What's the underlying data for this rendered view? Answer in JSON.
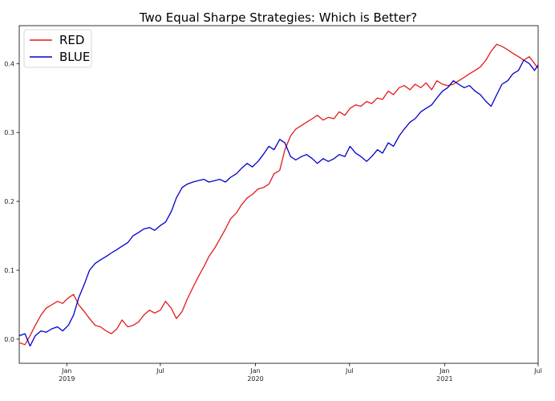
{
  "chart_data": {
    "type": "line",
    "title": "Two Equal Sharpe Strategies: Which is Better?",
    "xlabel": "",
    "ylabel": "",
    "x_range": [
      "2018-10-01",
      "2021-07-01"
    ],
    "ylim": [
      -0.035,
      0.455
    ],
    "y_ticks": [
      0.0,
      0.1,
      0.2,
      0.3,
      0.4
    ],
    "y_tick_labels": [
      "0.0",
      "0.1",
      "0.2",
      "0.3",
      "0.4"
    ],
    "x_ticks": [
      {
        "date": "2019-01-01",
        "label": "Jan",
        "sublabel": "2019"
      },
      {
        "date": "2019-07-01",
        "label": "Jul",
        "sublabel": ""
      },
      {
        "date": "2020-01-01",
        "label": "Jan",
        "sublabel": "2020"
      },
      {
        "date": "2020-07-01",
        "label": "Jul",
        "sublabel": ""
      },
      {
        "date": "2021-01-01",
        "label": "Jan",
        "sublabel": "2021"
      },
      {
        "date": "2021-07-01",
        "label": "Jul",
        "sublabel": ""
      }
    ],
    "grid": false,
    "legend_position": "top-left",
    "series": [
      {
        "name": "RED",
        "color": "#e41a1c",
        "points": [
          [
            "2018-10-01",
            -0.005
          ],
          [
            "2018-10-12",
            -0.008
          ],
          [
            "2018-10-22",
            0.005
          ],
          [
            "2018-11-01",
            0.02
          ],
          [
            "2018-11-12",
            0.035
          ],
          [
            "2018-11-22",
            0.045
          ],
          [
            "2018-12-03",
            0.05
          ],
          [
            "2018-12-14",
            0.055
          ],
          [
            "2018-12-24",
            0.052
          ],
          [
            "2019-01-04",
            0.06
          ],
          [
            "2019-01-14",
            0.065
          ],
          [
            "2019-01-24",
            0.05
          ],
          [
            "2019-02-04",
            0.04
          ],
          [
            "2019-02-14",
            0.03
          ],
          [
            "2019-02-25",
            0.02
          ],
          [
            "2019-03-07",
            0.018
          ],
          [
            "2019-03-18",
            0.012
          ],
          [
            "2019-03-28",
            0.008
          ],
          [
            "2019-04-08",
            0.015
          ],
          [
            "2019-04-18",
            0.028
          ],
          [
            "2019-04-29",
            0.018
          ],
          [
            "2019-05-09",
            0.02
          ],
          [
            "2019-05-20",
            0.025
          ],
          [
            "2019-05-30",
            0.035
          ],
          [
            "2019-06-10",
            0.042
          ],
          [
            "2019-06-20",
            0.038
          ],
          [
            "2019-07-01",
            0.042
          ],
          [
            "2019-07-11",
            0.055
          ],
          [
            "2019-07-22",
            0.045
          ],
          [
            "2019-08-01",
            0.03
          ],
          [
            "2019-08-12",
            0.04
          ],
          [
            "2019-08-22",
            0.058
          ],
          [
            "2019-09-02",
            0.075
          ],
          [
            "2019-09-12",
            0.09
          ],
          [
            "2019-09-23",
            0.105
          ],
          [
            "2019-10-03",
            0.12
          ],
          [
            "2019-10-14",
            0.132
          ],
          [
            "2019-10-24",
            0.145
          ],
          [
            "2019-11-04",
            0.16
          ],
          [
            "2019-11-14",
            0.175
          ],
          [
            "2019-11-25",
            0.183
          ],
          [
            "2019-12-05",
            0.195
          ],
          [
            "2019-12-16",
            0.205
          ],
          [
            "2019-12-26",
            0.21
          ],
          [
            "2020-01-06",
            0.218
          ],
          [
            "2020-01-16",
            0.22
          ],
          [
            "2020-01-27",
            0.225
          ],
          [
            "2020-02-06",
            0.24
          ],
          [
            "2020-02-17",
            0.245
          ],
          [
            "2020-02-27",
            0.275
          ],
          [
            "2020-03-09",
            0.295
          ],
          [
            "2020-03-19",
            0.305
          ],
          [
            "2020-03-30",
            0.31
          ],
          [
            "2020-04-09",
            0.315
          ],
          [
            "2020-04-20",
            0.32
          ],
          [
            "2020-04-30",
            0.325
          ],
          [
            "2020-05-11",
            0.318
          ],
          [
            "2020-05-21",
            0.322
          ],
          [
            "2020-06-01",
            0.32
          ],
          [
            "2020-06-11",
            0.33
          ],
          [
            "2020-06-22",
            0.325
          ],
          [
            "2020-07-02",
            0.335
          ],
          [
            "2020-07-13",
            0.34
          ],
          [
            "2020-07-23",
            0.338
          ],
          [
            "2020-08-03",
            0.345
          ],
          [
            "2020-08-13",
            0.342
          ],
          [
            "2020-08-24",
            0.35
          ],
          [
            "2020-09-03",
            0.348
          ],
          [
            "2020-09-14",
            0.36
          ],
          [
            "2020-09-24",
            0.355
          ],
          [
            "2020-10-05",
            0.365
          ],
          [
            "2020-10-15",
            0.368
          ],
          [
            "2020-10-26",
            0.362
          ],
          [
            "2020-11-05",
            0.37
          ],
          [
            "2020-11-16",
            0.365
          ],
          [
            "2020-11-26",
            0.372
          ],
          [
            "2020-12-07",
            0.362
          ],
          [
            "2020-12-17",
            0.375
          ],
          [
            "2020-12-28",
            0.37
          ],
          [
            "2021-01-07",
            0.368
          ],
          [
            "2021-01-18",
            0.37
          ],
          [
            "2021-01-28",
            0.375
          ],
          [
            "2021-02-08",
            0.38
          ],
          [
            "2021-02-18",
            0.385
          ],
          [
            "2021-03-01",
            0.39
          ],
          [
            "2021-03-11",
            0.395
          ],
          [
            "2021-03-22",
            0.405
          ],
          [
            "2021-04-01",
            0.418
          ],
          [
            "2021-04-12",
            0.428
          ],
          [
            "2021-04-22",
            0.425
          ],
          [
            "2021-05-03",
            0.42
          ],
          [
            "2021-05-13",
            0.415
          ],
          [
            "2021-05-24",
            0.41
          ],
          [
            "2021-06-03",
            0.405
          ],
          [
            "2021-06-14",
            0.41
          ],
          [
            "2021-06-24",
            0.4
          ],
          [
            "2021-07-01",
            0.393
          ]
        ]
      },
      {
        "name": "BLUE",
        "color": "#0000cc",
        "points": [
          [
            "2018-10-01",
            0.005
          ],
          [
            "2018-10-12",
            0.008
          ],
          [
            "2018-10-22",
            -0.01
          ],
          [
            "2018-11-01",
            0.005
          ],
          [
            "2018-11-12",
            0.012
          ],
          [
            "2018-11-22",
            0.01
          ],
          [
            "2018-12-03",
            0.015
          ],
          [
            "2018-12-14",
            0.018
          ],
          [
            "2018-12-24",
            0.012
          ],
          [
            "2019-01-04",
            0.02
          ],
          [
            "2019-01-14",
            0.035
          ],
          [
            "2019-01-24",
            0.06
          ],
          [
            "2019-02-04",
            0.08
          ],
          [
            "2019-02-14",
            0.1
          ],
          [
            "2019-02-25",
            0.11
          ],
          [
            "2019-03-07",
            0.115
          ],
          [
            "2019-03-18",
            0.12
          ],
          [
            "2019-03-28",
            0.125
          ],
          [
            "2019-04-08",
            0.13
          ],
          [
            "2019-04-18",
            0.135
          ],
          [
            "2019-04-29",
            0.14
          ],
          [
            "2019-05-09",
            0.15
          ],
          [
            "2019-05-20",
            0.155
          ],
          [
            "2019-05-30",
            0.16
          ],
          [
            "2019-06-10",
            0.162
          ],
          [
            "2019-06-20",
            0.158
          ],
          [
            "2019-07-01",
            0.165
          ],
          [
            "2019-07-11",
            0.17
          ],
          [
            "2019-07-22",
            0.185
          ],
          [
            "2019-08-01",
            0.205
          ],
          [
            "2019-08-12",
            0.22
          ],
          [
            "2019-08-22",
            0.225
          ],
          [
            "2019-09-02",
            0.228
          ],
          [
            "2019-09-12",
            0.23
          ],
          [
            "2019-09-23",
            0.232
          ],
          [
            "2019-10-03",
            0.228
          ],
          [
            "2019-10-14",
            0.23
          ],
          [
            "2019-10-24",
            0.232
          ],
          [
            "2019-11-04",
            0.228
          ],
          [
            "2019-11-14",
            0.235
          ],
          [
            "2019-11-25",
            0.24
          ],
          [
            "2019-12-05",
            0.248
          ],
          [
            "2019-12-16",
            0.255
          ],
          [
            "2019-12-26",
            0.25
          ],
          [
            "2020-01-06",
            0.258
          ],
          [
            "2020-01-16",
            0.268
          ],
          [
            "2020-01-27",
            0.28
          ],
          [
            "2020-02-06",
            0.275
          ],
          [
            "2020-02-17",
            0.29
          ],
          [
            "2020-02-27",
            0.285
          ],
          [
            "2020-03-09",
            0.265
          ],
          [
            "2020-03-19",
            0.26
          ],
          [
            "2020-03-30",
            0.265
          ],
          [
            "2020-04-09",
            0.268
          ],
          [
            "2020-04-20",
            0.262
          ],
          [
            "2020-04-30",
            0.255
          ],
          [
            "2020-05-11",
            0.262
          ],
          [
            "2020-05-21",
            0.258
          ],
          [
            "2020-06-01",
            0.262
          ],
          [
            "2020-06-11",
            0.268
          ],
          [
            "2020-06-22",
            0.265
          ],
          [
            "2020-07-02",
            0.28
          ],
          [
            "2020-07-13",
            0.27
          ],
          [
            "2020-07-23",
            0.265
          ],
          [
            "2020-08-03",
            0.258
          ],
          [
            "2020-08-13",
            0.265
          ],
          [
            "2020-08-24",
            0.275
          ],
          [
            "2020-09-03",
            0.27
          ],
          [
            "2020-09-14",
            0.285
          ],
          [
            "2020-09-24",
            0.28
          ],
          [
            "2020-10-05",
            0.295
          ],
          [
            "2020-10-15",
            0.305
          ],
          [
            "2020-10-26",
            0.315
          ],
          [
            "2020-11-05",
            0.32
          ],
          [
            "2020-11-16",
            0.33
          ],
          [
            "2020-11-26",
            0.335
          ],
          [
            "2020-12-07",
            0.34
          ],
          [
            "2020-12-17",
            0.35
          ],
          [
            "2020-12-28",
            0.36
          ],
          [
            "2021-01-07",
            0.365
          ],
          [
            "2021-01-18",
            0.375
          ],
          [
            "2021-01-28",
            0.37
          ],
          [
            "2021-02-08",
            0.365
          ],
          [
            "2021-02-18",
            0.368
          ],
          [
            "2021-03-01",
            0.36
          ],
          [
            "2021-03-11",
            0.355
          ],
          [
            "2021-03-22",
            0.345
          ],
          [
            "2021-04-01",
            0.338
          ],
          [
            "2021-04-12",
            0.355
          ],
          [
            "2021-04-22",
            0.37
          ],
          [
            "2021-05-03",
            0.375
          ],
          [
            "2021-05-13",
            0.385
          ],
          [
            "2021-05-24",
            0.39
          ],
          [
            "2021-06-03",
            0.405
          ],
          [
            "2021-06-14",
            0.4
          ],
          [
            "2021-06-24",
            0.39
          ],
          [
            "2021-07-01",
            0.398
          ]
        ]
      }
    ]
  }
}
